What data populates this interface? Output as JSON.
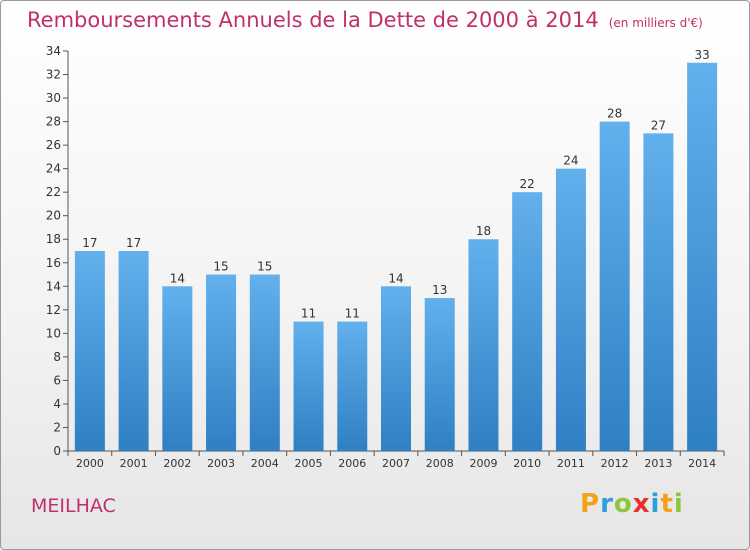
{
  "header": {
    "title": "Remboursements Annuels de la Dette de 2000 à 2014",
    "subtitle": "(en milliers d'€)"
  },
  "footer": {
    "commune": "MEILHAC",
    "logo_text": "Proxiti",
    "logo_letters": [
      {
        "char": "P",
        "color": "#f5a21b"
      },
      {
        "char": "r",
        "color": "#2e9fd8"
      },
      {
        "char": "o",
        "color": "#8ec53f"
      },
      {
        "char": "x",
        "color": "#e8312f"
      },
      {
        "char": "i",
        "color": "#2e9fd8"
      },
      {
        "char": "t",
        "color": "#f5a21b"
      },
      {
        "char": "i",
        "color": "#8ec53f"
      }
    ]
  },
  "colors": {
    "bar_top": "#62b0ec",
    "bar_bottom": "#2f7fc3",
    "accent": "#c0306a"
  },
  "chart_data": {
    "type": "bar",
    "categories": [
      "2000",
      "2001",
      "2002",
      "2003",
      "2004",
      "2005",
      "2006",
      "2007",
      "2008",
      "2009",
      "2010",
      "2011",
      "2012",
      "2013",
      "2014"
    ],
    "values": [
      17,
      17,
      14,
      15,
      15,
      11,
      11,
      14,
      13,
      18,
      22,
      24,
      28,
      27,
      33
    ],
    "ylim": [
      0,
      34
    ],
    "yticks": [
      0,
      2,
      4,
      6,
      8,
      10,
      12,
      14,
      16,
      18,
      20,
      22,
      24,
      26,
      28,
      30,
      32,
      34
    ],
    "grid": false,
    "legend": "none"
  }
}
